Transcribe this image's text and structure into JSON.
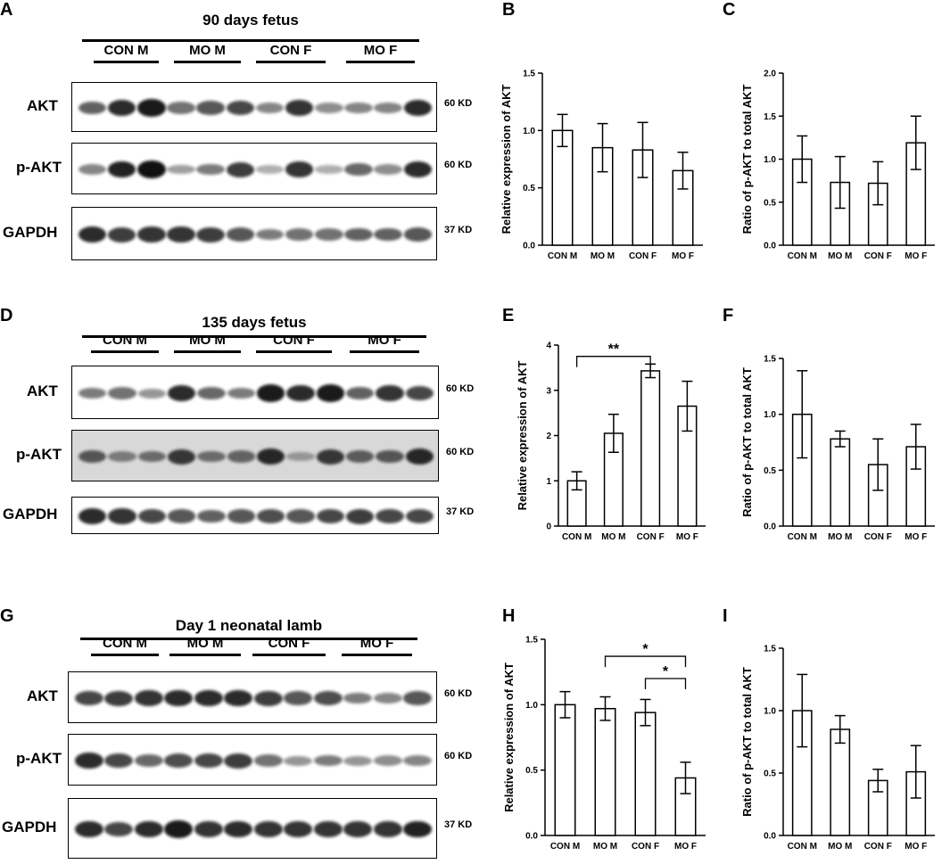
{
  "panels": [
    "A",
    "B",
    "C",
    "D",
    "E",
    "F",
    "G",
    "H",
    "I"
  ],
  "blots": [
    {
      "title": "90 days fetus",
      "groups": [
        "CON M",
        "MO M",
        "CON F",
        "MO F"
      ],
      "rows": [
        {
          "name": "AKT",
          "kd": "60 KD",
          "intensity": [
            0.55,
            0.85,
            0.95,
            0.45,
            0.6,
            0.7,
            0.35,
            0.8,
            0.3,
            0.35,
            0.35,
            0.85
          ]
        },
        {
          "name": "p-AKT",
          "kd": "60 KD",
          "intensity": [
            0.35,
            0.9,
            1.0,
            0.2,
            0.4,
            0.75,
            0.1,
            0.8,
            0.1,
            0.5,
            0.3,
            0.85
          ]
        },
        {
          "name": "GAPDH",
          "kd": "37 KD",
          "intensity": [
            0.85,
            0.75,
            0.8,
            0.8,
            0.75,
            0.6,
            0.4,
            0.45,
            0.45,
            0.55,
            0.55,
            0.6
          ]
        }
      ]
    },
    {
      "title": "135 days fetus",
      "groups": [
        "CON M",
        "MO M",
        "CON F",
        "MO F"
      ],
      "rows": [
        {
          "name": "AKT",
          "kd": "60 KD",
          "intensity": [
            0.4,
            0.45,
            0.25,
            0.85,
            0.5,
            0.4,
            0.95,
            0.85,
            0.95,
            0.55,
            0.8,
            0.7
          ]
        },
        {
          "name": "p-AKT",
          "kd": "60 KD",
          "intensity": [
            0.55,
            0.3,
            0.4,
            0.75,
            0.4,
            0.45,
            0.85,
            0.1,
            0.75,
            0.5,
            0.55,
            0.85
          ]
        },
        {
          "name": "GAPDH",
          "kd": "37 KD",
          "intensity": [
            0.85,
            0.8,
            0.7,
            0.6,
            0.55,
            0.6,
            0.65,
            0.6,
            0.7,
            0.75,
            0.7,
            0.7
          ]
        }
      ]
    },
    {
      "title": "Day 1 neonatal lamb",
      "groups": [
        "CON M",
        "MO M",
        "CON F",
        "MO F"
      ],
      "rows": [
        {
          "name": "AKT",
          "kd": "60 KD",
          "intensity": [
            0.7,
            0.75,
            0.8,
            0.85,
            0.85,
            0.85,
            0.75,
            0.6,
            0.65,
            0.4,
            0.35,
            0.6
          ]
        },
        {
          "name": "p-AKT",
          "kd": "60 KD",
          "intensity": [
            0.85,
            0.7,
            0.5,
            0.65,
            0.7,
            0.75,
            0.45,
            0.25,
            0.4,
            0.25,
            0.3,
            0.35
          ]
        },
        {
          "name": "GAPDH",
          "kd": "37 KD",
          "intensity": [
            0.85,
            0.7,
            0.85,
            0.95,
            0.8,
            0.85,
            0.8,
            0.8,
            0.8,
            0.8,
            0.8,
            0.9
          ]
        }
      ]
    }
  ],
  "chart_data": [
    {
      "panel": "B",
      "type": "bar",
      "categories": [
        "CON M",
        "MO M",
        "CON F",
        "MO F"
      ],
      "values": [
        1.0,
        0.85,
        0.83,
        0.65
      ],
      "errors": [
        0.14,
        0.21,
        0.24,
        0.16
      ],
      "ylabel": "Relative expression of AKT",
      "ylim": [
        0,
        1.5
      ],
      "yticks": [
        0,
        0.5,
        1.0,
        1.5
      ],
      "tick_labels": [
        "0.0",
        "0.5",
        "1.0",
        "1.5"
      ],
      "sig": []
    },
    {
      "panel": "C",
      "type": "bar",
      "categories": [
        "CON M",
        "MO M",
        "CON F",
        "MO F"
      ],
      "values": [
        1.0,
        0.73,
        0.72,
        1.19
      ],
      "errors": [
        0.27,
        0.3,
        0.25,
        0.31
      ],
      "ylabel": "Ratio of p-AKT to total AKT",
      "ylim": [
        0,
        2.0
      ],
      "yticks": [
        0,
        0.5,
        1.0,
        1.5,
        2.0
      ],
      "tick_labels": [
        "0.0",
        "0.5",
        "1.0",
        "1.5",
        "2.0"
      ],
      "sig": []
    },
    {
      "panel": "E",
      "type": "bar",
      "categories": [
        "CON M",
        "MO M",
        "CON F",
        "MO F"
      ],
      "values": [
        1.0,
        2.05,
        3.43,
        2.65
      ],
      "errors": [
        0.2,
        0.42,
        0.15,
        0.55
      ],
      "ylabel": "Relative expression of AKT",
      "ylim": [
        0,
        4
      ],
      "yticks": [
        0,
        1,
        2,
        3,
        4
      ],
      "tick_labels": [
        "0",
        "1",
        "2",
        "3",
        "4"
      ],
      "sig": [
        {
          "from": 0,
          "to": 2,
          "y": 3.75,
          "label": "**"
        }
      ]
    },
    {
      "panel": "F",
      "type": "bar",
      "categories": [
        "CON M",
        "MO M",
        "CON F",
        "MO F"
      ],
      "values": [
        1.0,
        0.78,
        0.55,
        0.71
      ],
      "errors": [
        0.39,
        0.07,
        0.23,
        0.2
      ],
      "ylabel": "Ratio of p-AKT to total AKT",
      "ylim": [
        0,
        1.5
      ],
      "yticks": [
        0,
        0.5,
        1.0,
        1.5
      ],
      "tick_labels": [
        "0.0",
        "0.5",
        "1.0",
        "1.5"
      ],
      "sig": []
    },
    {
      "panel": "H",
      "type": "bar",
      "categories": [
        "CON M",
        "MO M",
        "CON F",
        "MO F"
      ],
      "values": [
        1.0,
        0.97,
        0.94,
        0.44
      ],
      "errors": [
        0.1,
        0.09,
        0.1,
        0.12
      ],
      "ylabel": "Relative expression of AKT",
      "ylim": [
        0,
        1.5
      ],
      "yticks": [
        0,
        0.5,
        1.0,
        1.5
      ],
      "tick_labels": [
        "0.0",
        "0.5",
        "1.0",
        "1.5"
      ],
      "sig": [
        {
          "from": 1,
          "to": 3,
          "y": 1.37,
          "label": "*"
        },
        {
          "from": 2,
          "to": 3,
          "y": 1.2,
          "label": "*"
        }
      ]
    },
    {
      "panel": "I",
      "type": "bar",
      "categories": [
        "CON M",
        "MO M",
        "CON F",
        "MO F"
      ],
      "values": [
        1.0,
        0.85,
        0.44,
        0.51
      ],
      "errors": [
        0.29,
        0.11,
        0.09,
        0.21
      ],
      "ylabel": "Ratio of p-AKT to total AKT",
      "ylim": [
        0,
        1.5
      ],
      "yticks": [
        0,
        0.5,
        1.0,
        1.5
      ],
      "tick_labels": [
        "0.0",
        "0.5",
        "1.0",
        "1.5"
      ],
      "sig": []
    }
  ]
}
